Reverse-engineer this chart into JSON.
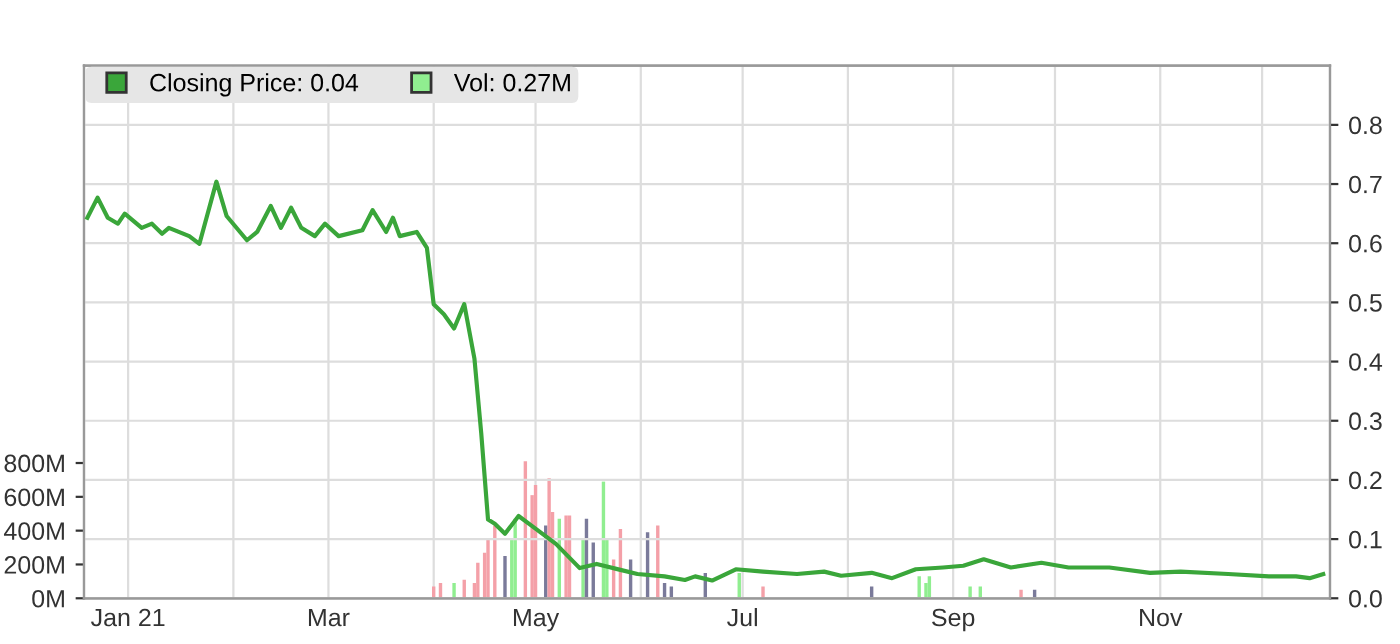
{
  "chart_data": {
    "type": "line",
    "xlim": [
      "2020-12-19",
      "2021-12-21"
    ],
    "xticks": [
      {
        "value": "2021-01-01",
        "label": "Jan 21"
      },
      {
        "value": "2021-02-01",
        "label": null
      },
      {
        "value": "2021-03-01",
        "label": "Mar"
      },
      {
        "value": "2021-04-01",
        "label": null
      },
      {
        "value": "2021-05-01",
        "label": "May"
      },
      {
        "value": "2021-06-01",
        "label": null
      },
      {
        "value": "2021-07-01",
        "label": "Jul"
      },
      {
        "value": "2021-08-01",
        "label": null
      },
      {
        "value": "2021-09-01",
        "label": "Sep"
      },
      {
        "value": "2021-10-01",
        "label": null
      },
      {
        "value": "2021-11-01",
        "label": "Nov"
      },
      {
        "value": "2021-12-01",
        "label": null
      }
    ],
    "ylim": [
      0,
      3150
    ],
    "yticks": [
      {
        "value": 0,
        "label": "0M"
      },
      {
        "value": 200,
        "label": "200M"
      },
      {
        "value": 400,
        "label": "400M"
      },
      {
        "value": 600,
        "label": "600M"
      },
      {
        "value": 800,
        "label": "800M"
      }
    ],
    "y2lim": [
      0,
      0.9
    ],
    "y2ticks": [
      {
        "value": 0,
        "label": "0.0"
      },
      0.1,
      0.2,
      0.3,
      0.4,
      0.5,
      0.6,
      0.7,
      0.8
    ],
    "grid": true,
    "legend": "top left",
    "series": [
      {
        "name": "Vol: 0.27M",
        "type": "bar",
        "axis": "y",
        "color": "#90ee90",
        "x": [
          "2021-04-01",
          "2021-04-03",
          "2021-04-07",
          "2021-04-10",
          "2021-04-13",
          "2021-04-14",
          "2021-04-16",
          "2021-04-17",
          "2021-04-19",
          "2021-04-22",
          "2021-04-24",
          "2021-04-25",
          "2021-04-28",
          "2021-04-30",
          "2021-05-01",
          "2021-05-04",
          "2021-05-05",
          "2021-05-06",
          "2021-05-08",
          "2021-05-10",
          "2021-05-11",
          "2021-05-15",
          "2021-05-16",
          "2021-05-18",
          "2021-05-21",
          "2021-05-22",
          "2021-05-24",
          "2021-05-26",
          "2021-05-29",
          "2021-06-03",
          "2021-06-06",
          "2021-06-08",
          "2021-06-10",
          "2021-06-20",
          "2021-06-30",
          "2021-07-07",
          "2021-08-08",
          "2021-08-22",
          "2021-08-24",
          "2021-08-25",
          "2021-09-06",
          "2021-09-09",
          "2021-09-21",
          "2021-09-25"
        ],
        "values": [
          70,
          90,
          90,
          110,
          90,
          210,
          270,
          350,
          430,
          250,
          350,
          470,
          810,
          610,
          670,
          430,
          710,
          510,
          470,
          490,
          490,
          350,
          470,
          330,
          690,
          350,
          230,
          410,
          230,
          390,
          430,
          90,
          70,
          150,
          150,
          70,
          70,
          130,
          90,
          130,
          70,
          70,
          50,
          50
        ],
        "colors": [
          "#f4a0a8",
          "#f4a0a8",
          "#90ee90",
          "#f4a0a8",
          "#f4a0a8",
          "#f4a0a8",
          "#f4a0a8",
          "#f4a0a8",
          "#f4a0a8",
          "#7a7a9a",
          "#90ee90",
          "#90ee90",
          "#f4a0a8",
          "#f4a0a8",
          "#f4a0a8",
          "#7a7a9a",
          "#f4a0a8",
          "#f4a0a8",
          "#90ee90",
          "#f4a0a8",
          "#f4a0a8",
          "#90ee90",
          "#7a7a9a",
          "#7a7a9a",
          "#90ee90",
          "#90ee90",
          "#f4a0a8",
          "#f4a0a8",
          "#7a7a9a",
          "#7a7a9a",
          "#f4a0a8",
          "#7a7a9a",
          "#7a7a9a",
          "#7a7a9a",
          "#90ee90",
          "#f4a0a8",
          "#7a7a9a",
          "#90ee90",
          "#90ee90",
          "#90ee90",
          "#90ee90",
          "#90ee90",
          "#f4a0a8",
          "#7a7a9a"
        ]
      },
      {
        "name": "Closing Price: 0.04",
        "axis": "y2",
        "color": "#3aa63a",
        "x": [
          "2020-12-20",
          "2020-12-23",
          "2020-12-26",
          "2020-12-29",
          "2020-12-31",
          "2021-01-05",
          "2021-01-08",
          "2021-01-11",
          "2021-01-13",
          "2021-01-19",
          "2021-01-22",
          "2021-01-27",
          "2021-01-30",
          "2021-02-05",
          "2021-02-08",
          "2021-02-12",
          "2021-02-15",
          "2021-02-18",
          "2021-02-21",
          "2021-02-25",
          "2021-02-28",
          "2021-03-04",
          "2021-03-11",
          "2021-03-14",
          "2021-03-18",
          "2021-03-20",
          "2021-03-22",
          "2021-03-27",
          "2021-03-30",
          "2021-04-01",
          "2021-04-04",
          "2021-04-07",
          "2021-04-10",
          "2021-04-13",
          "2021-04-15",
          "2021-04-17",
          "2021-04-19",
          "2021-04-22",
          "2021-04-26",
          "2021-04-30",
          "2021-05-07",
          "2021-05-14",
          "2021-05-19",
          "2021-05-26",
          "2021-05-31",
          "2021-06-08",
          "2021-06-14",
          "2021-06-17",
          "2021-06-22",
          "2021-06-29",
          "2021-07-07",
          "2021-07-17",
          "2021-07-25",
          "2021-07-30",
          "2021-08-08",
          "2021-08-14",
          "2021-08-21",
          "2021-08-29",
          "2021-09-04",
          "2021-09-10",
          "2021-09-18",
          "2021-09-27",
          "2021-10-05",
          "2021-10-17",
          "2021-10-29",
          "2021-11-07",
          "2021-11-21",
          "2021-12-03",
          "2021-12-11",
          "2021-12-15",
          "2021-12-19"
        ],
        "values": [
          0.643,
          0.677,
          0.643,
          0.633,
          0.65,
          0.626,
          0.633,
          0.616,
          0.626,
          0.612,
          0.599,
          0.704,
          0.646,
          0.605,
          0.619,
          0.663,
          0.626,
          0.66,
          0.626,
          0.612,
          0.633,
          0.612,
          0.622,
          0.656,
          0.619,
          0.643,
          0.612,
          0.619,
          0.592,
          0.497,
          0.48,
          0.456,
          0.497,
          0.405,
          0.279,
          0.133,
          0.126,
          0.109,
          0.139,
          0.122,
          0.092,
          0.051,
          0.058,
          0.048,
          0.041,
          0.037,
          0.031,
          0.037,
          0.03,
          0.049,
          0.045,
          0.041,
          0.045,
          0.038,
          0.043,
          0.034,
          0.049,
          0.052,
          0.055,
          0.066,
          0.052,
          0.06,
          0.052,
          0.052,
          0.043,
          0.045,
          0.041,
          0.037,
          0.037,
          0.034,
          0.041
        ]
      }
    ]
  }
}
